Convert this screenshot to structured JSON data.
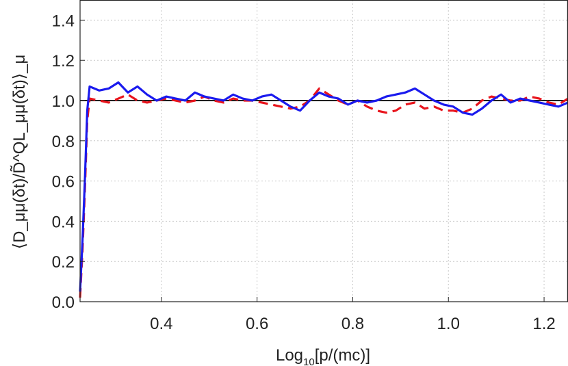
{
  "chart_data": {
    "type": "line",
    "xlabel_main": "Log",
    "xlabel_sub": "10",
    "xlabel_rest": "[p/(mc)]",
    "ylabel": "⟨D_μμ(δt)/D̃^QL_μμ(δt)⟩_μ",
    "xlim": [
      0.23,
      1.25
    ],
    "ylim": [
      0.0,
      1.5
    ],
    "xticks": [
      0.4,
      0.6,
      0.8,
      1.0,
      1.2
    ],
    "xtick_labels": [
      "0.4",
      "0.6",
      "0.8",
      "1.0",
      "1.2"
    ],
    "yticks": [
      0.0,
      0.2,
      0.4,
      0.6,
      0.8,
      1.0,
      1.2,
      1.4
    ],
    "ytick_labels": [
      "0.0",
      "0.2",
      "0.4",
      "0.6",
      "0.8",
      "1.0",
      "1.2",
      "1.4"
    ],
    "grid": true,
    "reference_line": {
      "y": 1.0,
      "color": "#000000"
    },
    "series": [
      {
        "style": "dashed",
        "color": "#e8141c",
        "x": [
          0.23,
          0.235,
          0.24,
          0.245,
          0.25,
          0.27,
          0.29,
          0.31,
          0.33,
          0.35,
          0.37,
          0.39,
          0.41,
          0.43,
          0.45,
          0.47,
          0.49,
          0.51,
          0.53,
          0.55,
          0.57,
          0.59,
          0.61,
          0.63,
          0.65,
          0.67,
          0.69,
          0.71,
          0.73,
          0.75,
          0.77,
          0.79,
          0.81,
          0.83,
          0.85,
          0.87,
          0.89,
          0.91,
          0.93,
          0.95,
          0.97,
          0.99,
          1.01,
          1.03,
          1.05,
          1.07,
          1.09,
          1.11,
          1.13,
          1.15,
          1.17,
          1.19,
          1.21,
          1.23,
          1.25
        ],
        "y": [
          0.02,
          0.25,
          0.55,
          0.9,
          1.01,
          1.0,
          0.99,
          1.01,
          1.03,
          1.0,
          0.99,
          1.0,
          1.01,
          1.0,
          0.99,
          1.0,
          1.02,
          1.0,
          0.99,
          1.01,
          1.0,
          1.0,
          0.99,
          0.98,
          0.97,
          0.96,
          0.97,
          1.0,
          1.06,
          1.03,
          1.0,
          0.98,
          1.0,
          0.97,
          0.95,
          0.94,
          0.95,
          0.98,
          0.99,
          0.96,
          0.97,
          0.95,
          0.95,
          0.94,
          0.96,
          1.0,
          1.02,
          1.01,
          1.0,
          1.0,
          1.02,
          1.01,
          0.99,
          0.98,
          1.01
        ]
      },
      {
        "style": "solid",
        "color": "#1a1aee",
        "x": [
          0.23,
          0.235,
          0.24,
          0.245,
          0.25,
          0.26,
          0.27,
          0.29,
          0.31,
          0.33,
          0.35,
          0.37,
          0.39,
          0.41,
          0.43,
          0.45,
          0.47,
          0.49,
          0.51,
          0.53,
          0.55,
          0.57,
          0.59,
          0.61,
          0.63,
          0.65,
          0.67,
          0.69,
          0.71,
          0.73,
          0.75,
          0.77,
          0.79,
          0.81,
          0.83,
          0.85,
          0.87,
          0.89,
          0.91,
          0.93,
          0.95,
          0.97,
          0.99,
          1.01,
          1.03,
          1.05,
          1.07,
          1.09,
          1.11,
          1.13,
          1.15,
          1.17,
          1.19,
          1.21,
          1.23,
          1.25
        ],
        "y": [
          0.05,
          0.3,
          0.6,
          0.95,
          1.07,
          1.06,
          1.05,
          1.06,
          1.09,
          1.04,
          1.07,
          1.03,
          1.0,
          1.02,
          1.01,
          1.0,
          1.04,
          1.02,
          1.01,
          1.0,
          1.03,
          1.01,
          1.0,
          1.02,
          1.03,
          1.0,
          0.97,
          0.95,
          1.0,
          1.04,
          1.02,
          1.01,
          0.98,
          1.0,
          0.99,
          1.0,
          1.02,
          1.03,
          1.04,
          1.06,
          1.03,
          1.0,
          0.98,
          0.97,
          0.94,
          0.93,
          0.96,
          1.0,
          1.03,
          0.99,
          1.01,
          1.0,
          0.99,
          0.98,
          0.97,
          0.99
        ]
      }
    ]
  }
}
